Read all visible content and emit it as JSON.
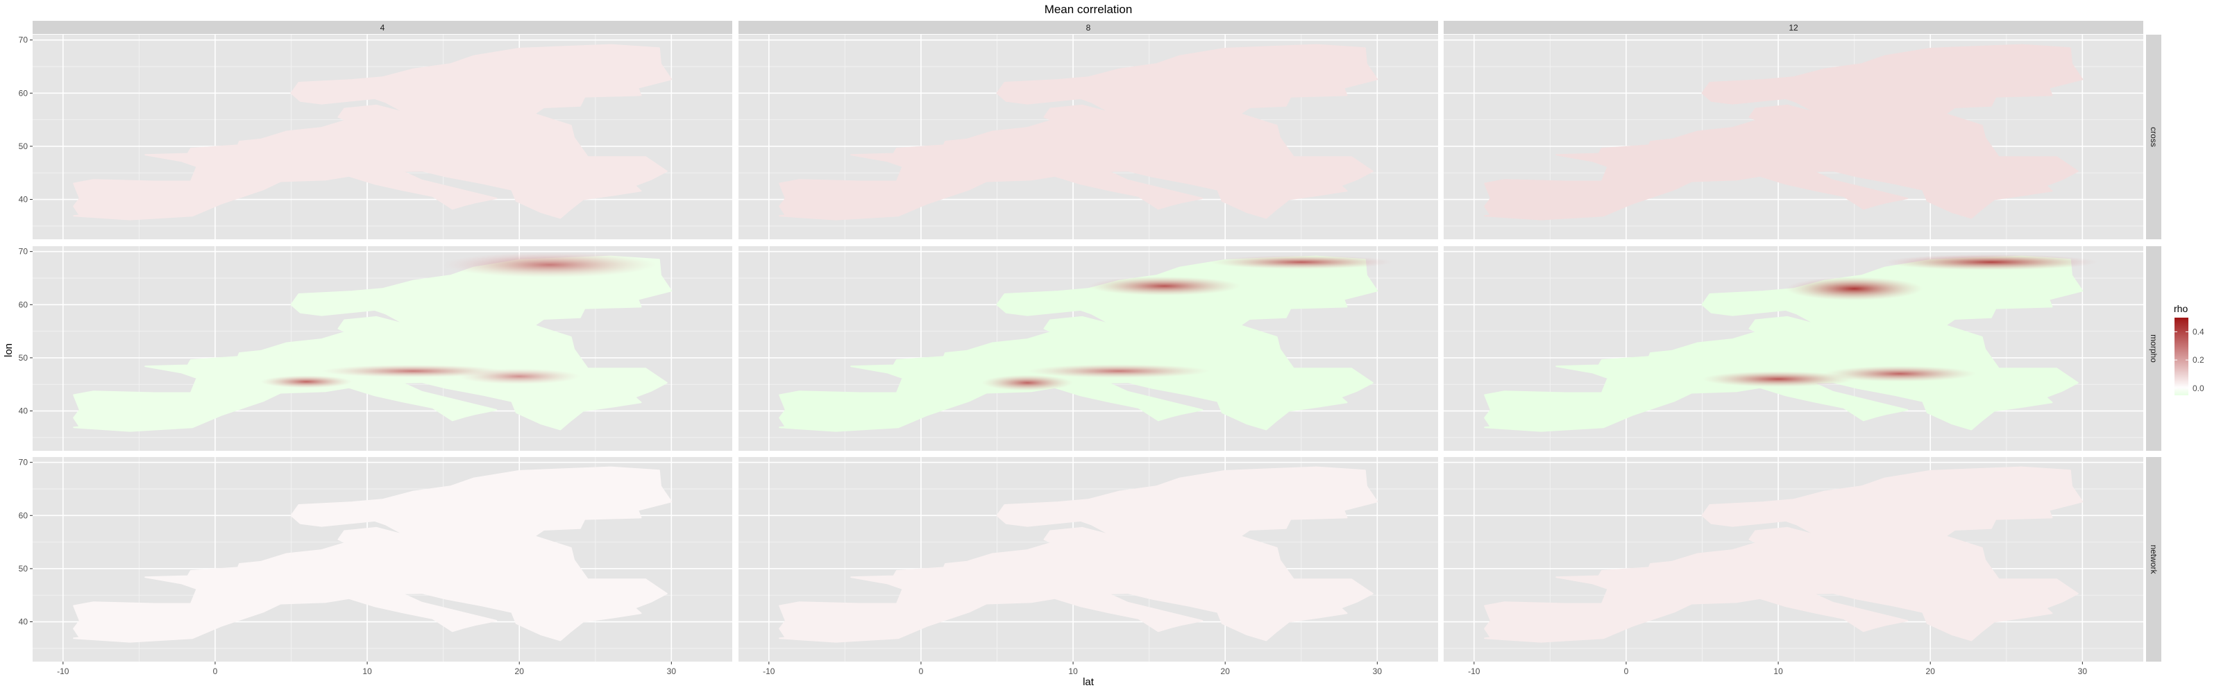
{
  "chart_data": {
    "type": "heatmap",
    "title": "Mean correlation",
    "xlabel": "lat",
    "ylabel": "lon",
    "xlim": [
      -12,
      34
    ],
    "ylim": [
      32.5,
      71
    ],
    "x_ticks": [
      -10,
      0,
      10,
      20,
      30
    ],
    "y_ticks": [
      40,
      50,
      60,
      70
    ],
    "grid": true,
    "col_facets": [
      "4",
      "8",
      "12"
    ],
    "row_facets": [
      "cross",
      "morpho",
      "network"
    ],
    "colors": {
      "panel_bg": "#E5E5E5",
      "grid": "#FFFFFF",
      "strip_bg": "#D3D3D3",
      "low": "#E8FFE4",
      "mid": "#FFFFFF",
      "high": "#A01515"
    },
    "legend": {
      "title": "rho",
      "placement": "right",
      "ticks": [
        "0.4",
        "0.2",
        "0.0"
      ],
      "tick_values": [
        0.4,
        0.2,
        0.0
      ],
      "range": [
        -0.05,
        0.5
      ]
    },
    "land_outline": [
      [
        -9.3,
        36.9
      ],
      [
        -5.6,
        36.2
      ],
      [
        -1.5,
        36.9
      ],
      [
        0.4,
        39.2
      ],
      [
        3.2,
        41.9
      ],
      [
        4.3,
        43.4
      ],
      [
        7.3,
        43.7
      ],
      [
        8.8,
        44.4
      ],
      [
        10.5,
        42.9
      ],
      [
        12.4,
        41.7
      ],
      [
        14.3,
        40.6
      ],
      [
        15.6,
        38.2
      ],
      [
        16.4,
        38.9
      ],
      [
        17.1,
        39.4
      ],
      [
        18.5,
        40.2
      ],
      [
        16.2,
        41.8
      ],
      [
        13.6,
        43.6
      ],
      [
        12.3,
        45.3
      ],
      [
        13.6,
        45.4
      ],
      [
        15.2,
        44.3
      ],
      [
        17.6,
        43.0
      ],
      [
        19.5,
        41.8
      ],
      [
        19.8,
        39.7
      ],
      [
        21.4,
        37.6
      ],
      [
        22.7,
        36.5
      ],
      [
        23.4,
        38.2
      ],
      [
        24.2,
        40.0
      ],
      [
        26.2,
        40.8
      ],
      [
        28.0,
        41.6
      ],
      [
        27.6,
        42.6
      ],
      [
        28.7,
        43.8
      ],
      [
        29.7,
        45.3
      ],
      [
        28.3,
        48.0
      ],
      [
        24.5,
        48.0
      ],
      [
        23.6,
        51.6
      ],
      [
        23.4,
        53.9
      ],
      [
        21.0,
        56.1
      ],
      [
        21.6,
        57.3
      ],
      [
        24.0,
        57.6
      ],
      [
        24.3,
        59.3
      ],
      [
        28.0,
        59.6
      ],
      [
        27.8,
        61.0
      ],
      [
        30.0,
        62.6
      ],
      [
        29.3,
        65.5
      ],
      [
        29.2,
        68.5
      ],
      [
        26.0,
        69.1
      ],
      [
        22.5,
        68.7
      ],
      [
        20.0,
        68.4
      ],
      [
        17.0,
        67.0
      ],
      [
        15.5,
        65.5
      ],
      [
        13.0,
        64.5
      ],
      [
        11.0,
        63.0
      ],
      [
        9.0,
        62.5
      ],
      [
        5.5,
        62.0
      ],
      [
        5.0,
        60.0
      ],
      [
        5.6,
        58.5
      ],
      [
        7.0,
        58.0
      ],
      [
        10.5,
        59.0
      ],
      [
        11.2,
        58.3
      ],
      [
        12.5,
        56.3
      ],
      [
        10.6,
        57.7
      ],
      [
        8.5,
        57.1
      ],
      [
        8.1,
        55.5
      ],
      [
        8.6,
        54.9
      ],
      [
        7.0,
        53.5
      ],
      [
        4.7,
        52.8
      ],
      [
        3.0,
        51.3
      ],
      [
        1.6,
        50.9
      ],
      [
        1.5,
        50.2
      ],
      [
        -1.6,
        49.6
      ],
      [
        -1.8,
        48.6
      ],
      [
        -4.6,
        48.4
      ],
      [
        -2.2,
        47.2
      ],
      [
        -1.2,
        46.2
      ],
      [
        -1.6,
        43.4
      ],
      [
        -4.0,
        43.4
      ],
      [
        -8.0,
        43.7
      ],
      [
        -9.3,
        43.0
      ],
      [
        -8.9,
        40.2
      ],
      [
        -9.3,
        38.7
      ],
      [
        -8.9,
        37.0
      ]
    ],
    "hotspots": [
      {
        "facet": "morpho/4",
        "x": 22,
        "y": 67.5,
        "rx": 7,
        "ry": 2.4,
        "rho": 0.3
      },
      {
        "facet": "morpho/4",
        "x": 6,
        "y": 45.5,
        "rx": 3,
        "ry": 1.2,
        "rho": 0.35
      },
      {
        "facet": "morpho/4",
        "x": 13,
        "y": 47.5,
        "rx": 6,
        "ry": 1.2,
        "rho": 0.3
      },
      {
        "facet": "morpho/4",
        "x": 20,
        "y": 46.5,
        "rx": 4,
        "ry": 1.5,
        "rho": 0.25
      },
      {
        "facet": "morpho/8",
        "x": 16,
        "y": 63.5,
        "rx": 5,
        "ry": 1.8,
        "rho": 0.38
      },
      {
        "facet": "morpho/8",
        "x": 25,
        "y": 68.0,
        "rx": 6,
        "ry": 1.3,
        "rho": 0.36
      },
      {
        "facet": "morpho/8",
        "x": 7,
        "y": 45.3,
        "rx": 3,
        "ry": 1.5,
        "rho": 0.35
      },
      {
        "facet": "morpho/8",
        "x": 13,
        "y": 47.5,
        "rx": 6,
        "ry": 1.3,
        "rho": 0.3
      },
      {
        "facet": "morpho/12",
        "x": 15,
        "y": 63.0,
        "rx": 4.5,
        "ry": 2.2,
        "rho": 0.45
      },
      {
        "facet": "morpho/12",
        "x": 24,
        "y": 68.0,
        "rx": 7,
        "ry": 1.5,
        "rho": 0.42
      },
      {
        "facet": "morpho/12",
        "x": 10,
        "y": 46.0,
        "rx": 5,
        "ry": 1.5,
        "rho": 0.38
      },
      {
        "facet": "morpho/12",
        "x": 18,
        "y": 47.0,
        "rx": 5,
        "ry": 1.5,
        "rho": 0.35
      }
    ]
  }
}
